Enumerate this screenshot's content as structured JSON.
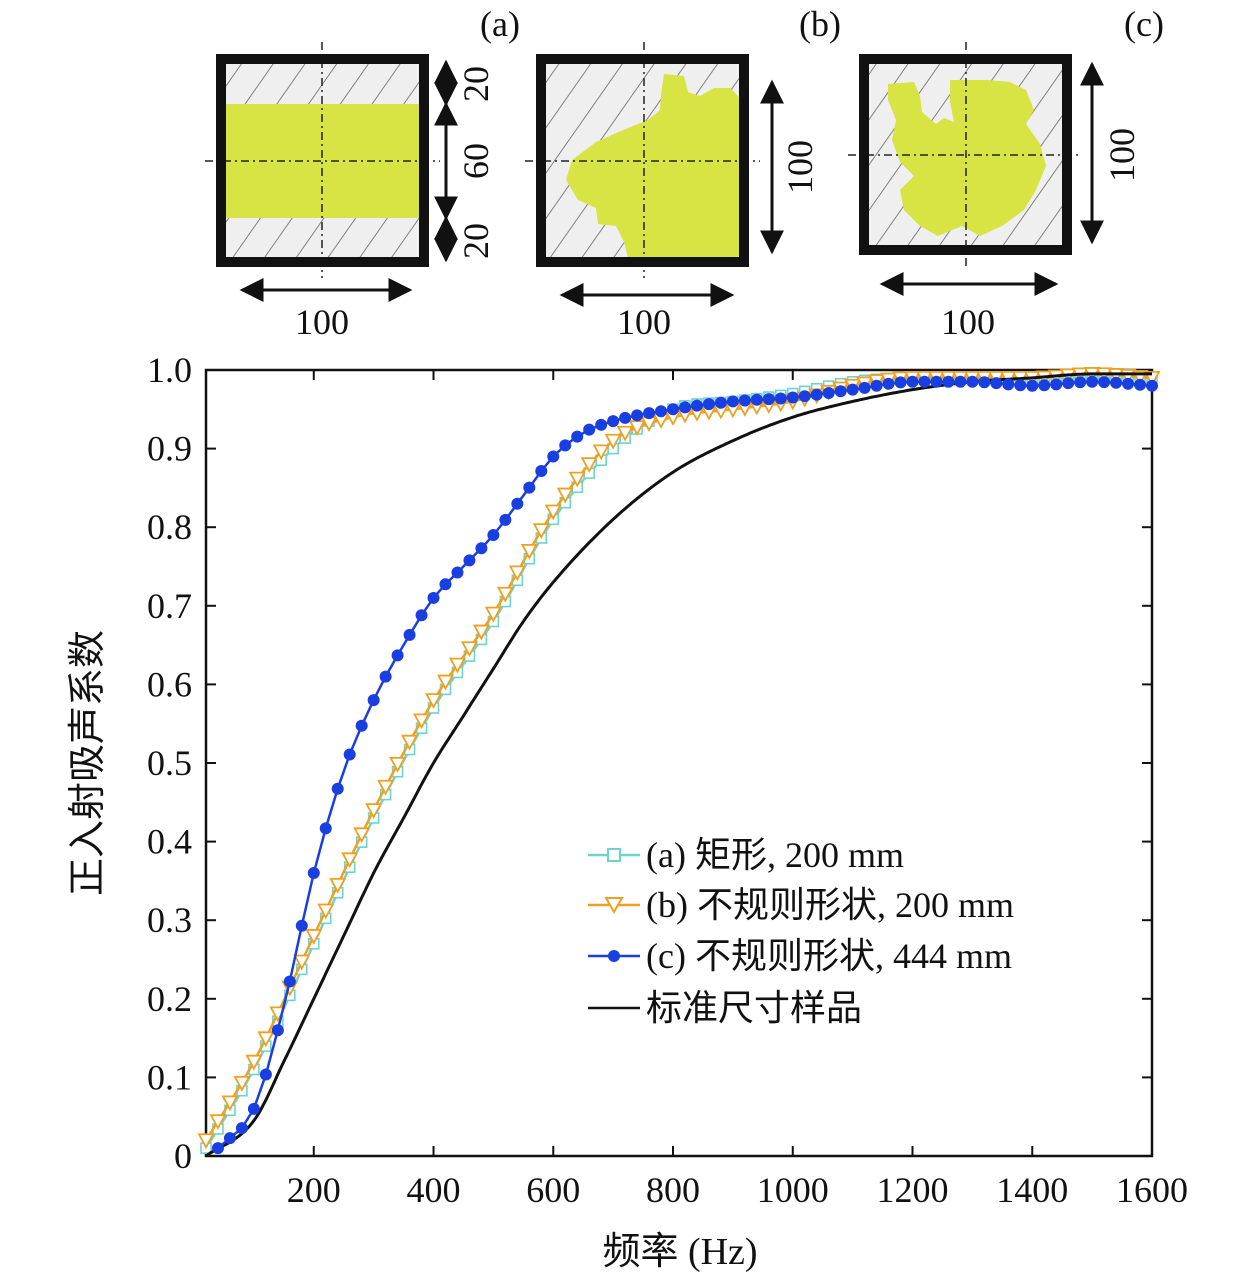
{
  "panels": [
    {
      "label": "(a)",
      "dim_bottom": "100",
      "dim_right": [
        "20",
        "60",
        "20"
      ]
    },
    {
      "label": "(b)",
      "dim_bottom": "100",
      "dim_right": [
        "100"
      ]
    },
    {
      "label": "(c)",
      "dim_bottom": "100",
      "dim_right": [
        "100"
      ]
    }
  ],
  "colors": {
    "fill": "#d8e444",
    "frame": "#111111",
    "series_a": "#6fd3cd",
    "series_b": "#f0a020",
    "series_c": "#1a3fe0",
    "series_std": "#111111"
  },
  "chart_data": {
    "type": "line",
    "xlabel": "频率 (Hz)",
    "ylabel": "正入射吸声系数",
    "xlim": [
      20,
      1600
    ],
    "ylim": [
      0,
      1.0
    ],
    "xticks": [
      200,
      400,
      600,
      800,
      1000,
      1200,
      1400,
      1600
    ],
    "yticks": [
      0,
      0.1,
      0.2,
      0.3,
      0.4,
      0.5,
      0.6,
      0.7,
      0.8,
      0.9,
      1.0
    ],
    "xtick_labels": [
      "200",
      "400",
      "600",
      "800",
      "1000",
      "1200",
      "1400",
      "1600"
    ],
    "ytick_labels": [
      "0",
      "0.1",
      "0.2",
      "0.3",
      "0.4",
      "0.5",
      "0.6",
      "0.7",
      "0.8",
      "0.9",
      "1.0"
    ],
    "legend_position": "lower-right",
    "series": [
      {
        "name": "(a) 矩形, 200 mm",
        "marker": "square",
        "color": "#6fd3cd",
        "x": [
          20,
          100,
          200,
          300,
          400,
          500,
          600,
          700,
          800,
          900,
          1000,
          1100,
          1200,
          1300,
          1400,
          1500,
          1600
        ],
        "y": [
          0.01,
          0.11,
          0.27,
          0.43,
          0.57,
          0.68,
          0.81,
          0.9,
          0.95,
          0.96,
          0.97,
          0.985,
          0.99,
          0.99,
          0.99,
          0.99,
          0.99
        ]
      },
      {
        "name": "(b) 不规则形状, 200 mm",
        "marker": "triangle-down",
        "color": "#f0a020",
        "x": [
          20,
          100,
          200,
          300,
          400,
          500,
          600,
          700,
          800,
          900,
          1000,
          1100,
          1200,
          1300,
          1400,
          1500,
          1600
        ],
        "y": [
          0.02,
          0.12,
          0.28,
          0.44,
          0.58,
          0.69,
          0.82,
          0.91,
          0.94,
          0.95,
          0.96,
          0.98,
          0.99,
          0.99,
          0.99,
          0.995,
          0.99
        ]
      },
      {
        "name": "(c) 不规则形状, 444 mm",
        "marker": "circle",
        "color": "#1a3fe0",
        "x": [
          40,
          100,
          150,
          200,
          250,
          300,
          350,
          400,
          450,
          500,
          550,
          600,
          650,
          700,
          800,
          900,
          1000,
          1100,
          1200,
          1300,
          1400,
          1500,
          1600
        ],
        "y": [
          0.01,
          0.06,
          0.19,
          0.36,
          0.49,
          0.58,
          0.65,
          0.71,
          0.75,
          0.79,
          0.84,
          0.89,
          0.92,
          0.935,
          0.95,
          0.96,
          0.965,
          0.975,
          0.985,
          0.985,
          0.98,
          0.985,
          0.98
        ]
      },
      {
        "name": "标准尺寸样品",
        "marker": "none",
        "color": "#111111",
        "x": [
          20,
          100,
          150,
          200,
          250,
          300,
          350,
          400,
          450,
          500,
          550,
          600,
          700,
          800,
          900,
          1000,
          1100,
          1200,
          1300,
          1400,
          1500,
          1600
        ],
        "y": [
          0.0,
          0.045,
          0.12,
          0.2,
          0.28,
          0.36,
          0.43,
          0.5,
          0.56,
          0.62,
          0.68,
          0.73,
          0.81,
          0.87,
          0.91,
          0.94,
          0.96,
          0.975,
          0.985,
          0.99,
          0.995,
          0.995
        ]
      }
    ]
  }
}
